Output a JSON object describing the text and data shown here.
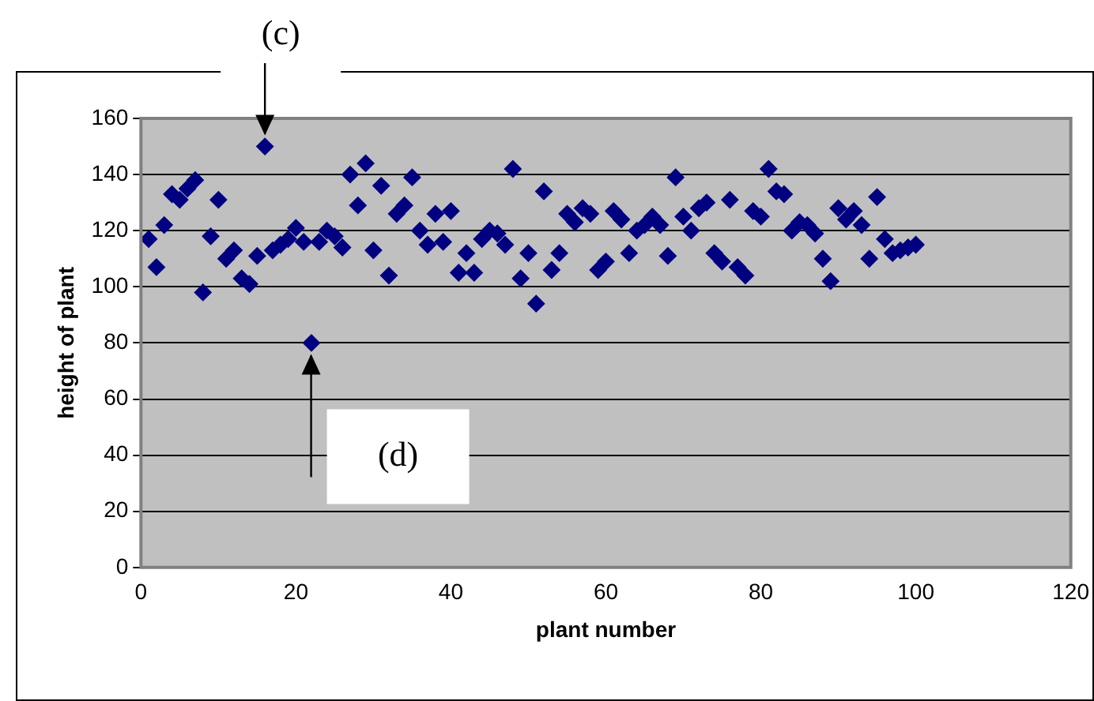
{
  "chart_data": {
    "type": "scatter",
    "xlabel": "plant number",
    "ylabel": "height of plant",
    "x": [
      1,
      2,
      3,
      4,
      5,
      6,
      7,
      8,
      9,
      10,
      11,
      12,
      13,
      14,
      15,
      16,
      17,
      18,
      19,
      20,
      21,
      22,
      23,
      24,
      25,
      26,
      27,
      28,
      29,
      30,
      31,
      32,
      33,
      34,
      35,
      36,
      37,
      38,
      39,
      40,
      41,
      42,
      43,
      44,
      45,
      46,
      47,
      48,
      49,
      50,
      51,
      52,
      53,
      54,
      55,
      56,
      57,
      58,
      59,
      60,
      61,
      62,
      63,
      64,
      65,
      66,
      67,
      68,
      69,
      70,
      71,
      72,
      73,
      74,
      75,
      76,
      77,
      78,
      79,
      80,
      81,
      82,
      83,
      84,
      85,
      86,
      87,
      88,
      89,
      90,
      91,
      92,
      93,
      94,
      95,
      96,
      97,
      98,
      99,
      100
    ],
    "values": [
      117,
      107,
      122,
      133,
      131,
      135,
      138,
      98,
      118,
      131,
      110,
      113,
      103,
      101,
      111,
      150,
      113,
      115,
      117,
      121,
      116,
      80,
      116,
      120,
      118,
      114,
      140,
      129,
      144,
      113,
      136,
      104,
      126,
      129,
      139,
      120,
      115,
      126,
      116,
      127,
      105,
      112,
      105,
      117,
      120,
      119,
      115,
      142,
      103,
      112,
      94,
      134,
      106,
      112,
      126,
      123,
      128,
      126,
      106,
      109,
      127,
      124,
      112,
      120,
      122,
      125,
      122,
      111,
      139,
      125,
      120,
      128,
      130,
      112,
      109,
      131,
      107,
      104,
      127,
      125,
      142,
      134,
      133,
      120,
      123,
      122,
      119,
      110,
      102,
      128,
      124,
      127,
      122,
      110,
      132,
      117,
      112,
      113,
      114,
      115
    ],
    "color": "#000080",
    "marker": "diamond",
    "legend": false,
    "grid": "y",
    "xlim": [
      0,
      120
    ],
    "xticks": [
      0,
      20,
      40,
      60,
      80,
      100,
      120
    ],
    "ylim": [
      0,
      160
    ],
    "yticks": [
      0,
      20,
      40,
      60,
      80,
      100,
      120,
      140,
      160
    ],
    "annotations": [
      {
        "text": "(c)",
        "x": 16,
        "y": 150
      },
      "(d)"
    ]
  }
}
